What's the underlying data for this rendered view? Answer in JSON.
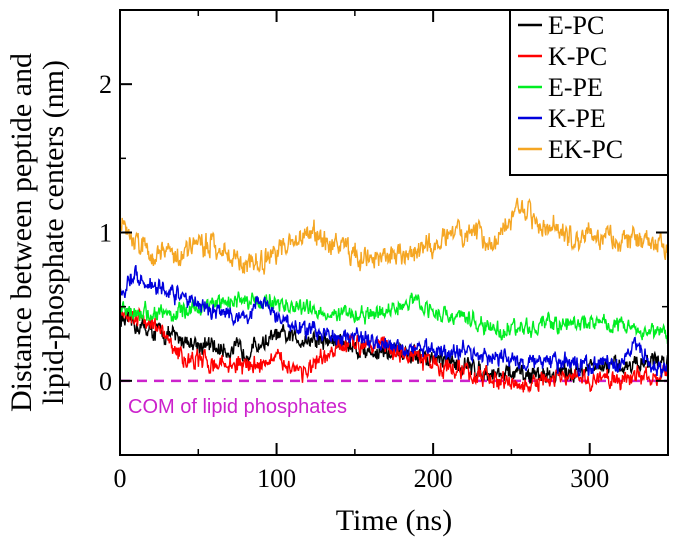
{
  "chart_data": {
    "type": "line",
    "title": "",
    "xlabel": "Time (ns)",
    "ylabel_lines": [
      "Distance between peptide and",
      "lipid-phosphate centers (nm)"
    ],
    "xlim": [
      0,
      350
    ],
    "ylim": [
      -0.5,
      2.5
    ],
    "x_ticks": [
      0,
      100,
      200,
      300
    ],
    "y_ticks": [
      0,
      1,
      2
    ],
    "legend_position": "top-right",
    "reference_line": {
      "y": 0,
      "color": "#cc22cc",
      "style": "dashed",
      "label": "COM of lipid phosphates"
    },
    "series": [
      {
        "name": "E-PC",
        "color": "#000000",
        "noise": 0.045,
        "x": [
          0,
          20,
          40,
          60,
          80,
          100,
          120,
          140,
          160,
          180,
          200,
          220,
          240,
          260,
          280,
          300,
          320,
          340,
          350
        ],
        "values": [
          0.42,
          0.34,
          0.28,
          0.22,
          0.2,
          0.3,
          0.28,
          0.26,
          0.2,
          0.18,
          0.14,
          0.1,
          0.05,
          0.04,
          0.05,
          0.08,
          0.1,
          0.14,
          0.12
        ]
      },
      {
        "name": "K-PC",
        "color": "#ff0000",
        "noise": 0.045,
        "x": [
          0,
          20,
          40,
          60,
          80,
          100,
          120,
          140,
          160,
          180,
          200,
          220,
          240,
          260,
          280,
          300,
          320,
          340,
          350
        ],
        "values": [
          0.48,
          0.4,
          0.15,
          0.12,
          0.1,
          0.14,
          0.06,
          0.22,
          0.28,
          0.18,
          0.12,
          0.06,
          0.0,
          -0.04,
          0.02,
          0.0,
          0.02,
          0.04,
          0.04
        ]
      },
      {
        "name": "E-PE",
        "color": "#00ee22",
        "noise": 0.04,
        "x": [
          0,
          20,
          40,
          60,
          80,
          100,
          120,
          140,
          160,
          180,
          190,
          200,
          220,
          240,
          260,
          280,
          300,
          320,
          340,
          350
        ],
        "values": [
          0.48,
          0.45,
          0.46,
          0.52,
          0.55,
          0.52,
          0.48,
          0.45,
          0.44,
          0.5,
          0.55,
          0.46,
          0.42,
          0.34,
          0.36,
          0.38,
          0.4,
          0.38,
          0.33,
          0.3
        ]
      },
      {
        "name": "K-PE",
        "color": "#0000dd",
        "noise": 0.04,
        "x": [
          0,
          10,
          20,
          40,
          60,
          80,
          90,
          100,
          120,
          140,
          160,
          180,
          200,
          220,
          240,
          260,
          280,
          300,
          320,
          330,
          340,
          350
        ],
        "values": [
          0.58,
          0.72,
          0.65,
          0.56,
          0.48,
          0.42,
          0.55,
          0.42,
          0.34,
          0.3,
          0.28,
          0.24,
          0.2,
          0.2,
          0.16,
          0.12,
          0.12,
          0.1,
          0.12,
          0.24,
          0.1,
          0.08
        ]
      },
      {
        "name": "EK-PC",
        "color": "#f5a623",
        "noise": 0.055,
        "x": [
          0,
          20,
          40,
          60,
          80,
          100,
          120,
          140,
          160,
          180,
          200,
          220,
          240,
          255,
          270,
          290,
          310,
          330,
          350
        ],
        "values": [
          1.05,
          0.85,
          0.88,
          0.94,
          0.78,
          0.85,
          1.0,
          0.9,
          0.82,
          0.84,
          0.92,
          1.0,
          0.94,
          1.2,
          1.04,
          0.95,
          0.98,
          0.95,
          0.9
        ]
      }
    ]
  }
}
